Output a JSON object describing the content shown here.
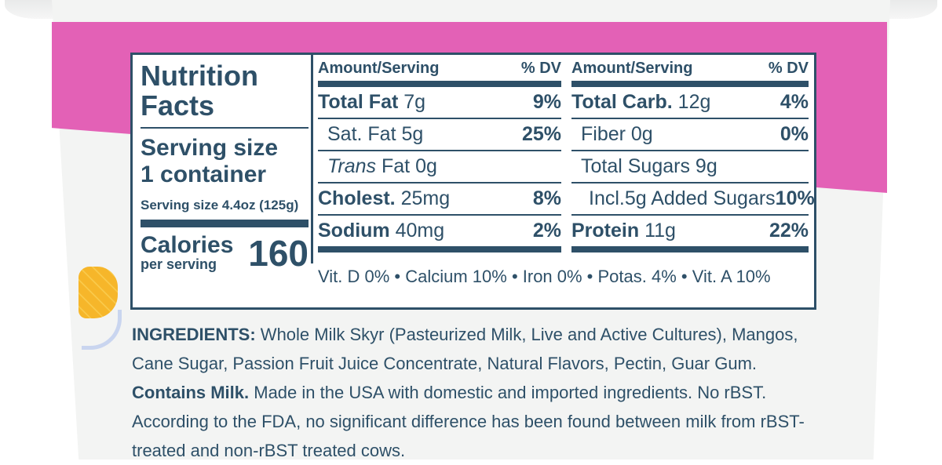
{
  "panel": {
    "title_line1": "Nutrition",
    "title_line2": "Facts",
    "serving_size_line1": "Serving size",
    "serving_size_line2": "1 container",
    "serving_size_weight": "Serving size 4.4oz (125g)",
    "calories_label": "Calories",
    "calories_sub": "per serving",
    "calories_value": "160"
  },
  "col_a": {
    "header_amount": "Amount/Serving",
    "header_dv": "% DV",
    "rows": [
      {
        "label": "Total Fat",
        "amount": " 7g",
        "dv": "9%"
      },
      {
        "label": "Sat. Fat 5g",
        "amount": "",
        "dv": "25%"
      },
      {
        "label_italic": "Trans",
        "label": " Fat 0g",
        "dv": ""
      },
      {
        "label": "Cholest.",
        "amount": " 25mg",
        "dv": "8%"
      },
      {
        "label": "Sodium",
        "amount": " 40mg",
        "dv": "2%"
      }
    ]
  },
  "col_b": {
    "header_amount": "Amount/Serving",
    "header_dv": "% DV",
    "rows": [
      {
        "label": "Total Carb.",
        "amount": " 12g",
        "dv": "4%"
      },
      {
        "label": "Fiber 0g",
        "amount": "",
        "dv": "0%"
      },
      {
        "label": "Total Sugars 9g",
        "amount": "",
        "dv": ""
      },
      {
        "label": "Incl.5g Added Sugars",
        "amount": "",
        "dv": "10%"
      },
      {
        "label": "Protein",
        "amount": " 11g",
        "dv": "22%"
      }
    ]
  },
  "vitamins": "Vit. D 0% • Calcium 10% • Iron 0% • Potas. 4% • Vit. A 10%",
  "ingredients": {
    "label": "INGREDIENTS:",
    "text1": " Whole Milk Skyr (Pasteurized Milk, Live and Active Cultures), Mangos, Cane Sugar, Passion Fruit Juice Concentrate, Natural Flavors, Pectin, Guar Gum. ",
    "contains": "Contains Milk.",
    "text2": " Made in the USA with domestic and imported ingredients. No rBST. According to the FDA, no significant difference has been found between milk from rBST-treated and non-rBST treated cows."
  },
  "colors": {
    "ink": "#2e5068",
    "pink": "#e361b6",
    "mango": "#f6b62a"
  },
  "decor": [
    "mango-icon",
    "bowl-icon"
  ]
}
